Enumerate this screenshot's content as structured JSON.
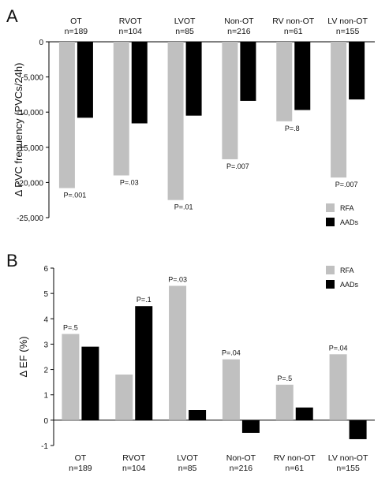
{
  "panel_a": {
    "letter": "A"
  },
  "panel_b": {
    "letter": "B"
  },
  "chart_data": [
    {
      "type": "bar",
      "panel": "A",
      "ylabel": "Δ PVC frequency (PVCs/24h)",
      "ylim": [
        -25000,
        0
      ],
      "yticks": [
        0,
        -5000,
        -10000,
        -15000,
        -20000,
        -25000
      ],
      "ytick_labels": [
        "0",
        "-5,000",
        "-10,000",
        "-15,000",
        "-20,000",
        "-25,000"
      ],
      "categories": [
        "OT",
        "RVOT",
        "LVOT",
        "Non-OT",
        "RV non-OT",
        "LV non-OT"
      ],
      "category_n": [
        "n=189",
        "n=104",
        "n=85",
        "n=216",
        "n=61",
        "n=155"
      ],
      "series": [
        {
          "name": "RFA",
          "color": "#c0c0c0",
          "values": [
            -20800,
            -19000,
            -22500,
            -16700,
            -11300,
            -19300
          ]
        },
        {
          "name": "AADs",
          "color": "#000000",
          "values": [
            -10800,
            -11600,
            -10500,
            -8400,
            -9700,
            -8200
          ]
        }
      ],
      "p_values": [
        "P=.001",
        "P=.03",
        "P=.01",
        "P=.007",
        "P=.8",
        "P=.007"
      ],
      "legend_position": "bottom-right",
      "grid": false
    },
    {
      "type": "bar",
      "panel": "B",
      "ylabel": "Δ EF (%)",
      "ylim": [
        -1,
        6
      ],
      "yticks": [
        6,
        5,
        4,
        3,
        2,
        1,
        0,
        -1
      ],
      "ytick_labels": [
        "6",
        "5",
        "4",
        "3",
        "2",
        "1",
        "0",
        "-1"
      ],
      "categories": [
        "OT",
        "RVOT",
        "LVOT",
        "Non-OT",
        "RV non-OT",
        "LV non-OT"
      ],
      "category_n": [
        "n=189",
        "n=104",
        "n=85",
        "n=216",
        "n=61",
        "n=155"
      ],
      "series": [
        {
          "name": "RFA",
          "color": "#c0c0c0",
          "values": [
            3.4,
            1.8,
            5.3,
            2.4,
            1.4,
            2.6
          ]
        },
        {
          "name": "AADs",
          "color": "#000000",
          "values": [
            2.9,
            4.5,
            0.4,
            -0.5,
            0.5,
            -0.75
          ]
        }
      ],
      "p_values": [
        "P=.5",
        "P=.1",
        "P=.03",
        "P=.04",
        "P=.5",
        "P=.04"
      ],
      "legend_position": "top-right",
      "grid": false
    }
  ]
}
